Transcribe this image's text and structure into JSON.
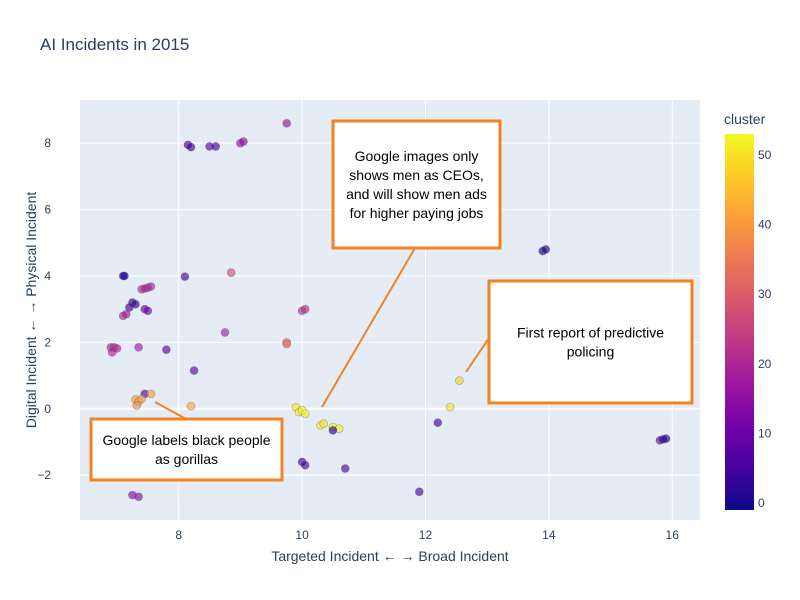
{
  "chart_data": {
    "type": "scatter",
    "title": "AI Incidents in 2015",
    "xlabel": "Targeted Incident ← → Broad Incident",
    "ylabel": "Digital Incident ← → Physical Incident",
    "xlim": [
      6.4,
      16.45
    ],
    "ylim": [
      -3.35,
      9.3
    ],
    "x_ticks": [
      8,
      10,
      12,
      14,
      16
    ],
    "y_ticks": [
      -2,
      0,
      2,
      4,
      6,
      8
    ],
    "y_tick_labels": [
      "−2",
      "0",
      "2",
      "4",
      "6",
      "8"
    ],
    "grid": true,
    "colorbar": {
      "title": "cluster",
      "range": [
        -1,
        53
      ],
      "ticks": [
        0,
        10,
        20,
        30,
        40,
        50
      ],
      "colors": [
        "#0d0887",
        "#46039f",
        "#7201a8",
        "#9c179e",
        "#bd3786",
        "#d8576b",
        "#ed7953",
        "#fb9f3a",
        "#fdca26",
        "#f0f921"
      ]
    },
    "points": [
      {
        "x": 8.15,
        "y": 7.95,
        "cluster": 5
      },
      {
        "x": 8.2,
        "y": 7.88,
        "cluster": 5
      },
      {
        "x": 8.5,
        "y": 7.9,
        "cluster": 8
      },
      {
        "x": 8.6,
        "y": 7.9,
        "cluster": 6
      },
      {
        "x": 9.0,
        "y": 8.0,
        "cluster": 15
      },
      {
        "x": 9.05,
        "y": 8.05,
        "cluster": 15
      },
      {
        "x": 9.75,
        "y": 8.6,
        "cluster": 16
      },
      {
        "x": 7.1,
        "y": 4.0,
        "cluster": 1
      },
      {
        "x": 7.12,
        "y": 4.0,
        "cluster": 1
      },
      {
        "x": 8.1,
        "y": 3.98,
        "cluster": 5
      },
      {
        "x": 8.85,
        "y": 4.1,
        "cluster": 28
      },
      {
        "x": 13.9,
        "y": 4.75,
        "cluster": 1
      },
      {
        "x": 13.95,
        "y": 4.8,
        "cluster": 1
      },
      {
        "x": 7.25,
        "y": 3.2,
        "cluster": 3
      },
      {
        "x": 7.3,
        "y": 3.15,
        "cluster": 3
      },
      {
        "x": 7.2,
        "y": 3.05,
        "cluster": 4
      },
      {
        "x": 7.4,
        "y": 3.6,
        "cluster": 20
      },
      {
        "x": 7.45,
        "y": 3.62,
        "cluster": 20
      },
      {
        "x": 7.5,
        "y": 3.65,
        "cluster": 20
      },
      {
        "x": 7.55,
        "y": 3.68,
        "cluster": 20
      },
      {
        "x": 7.45,
        "y": 3.0,
        "cluster": 10
      },
      {
        "x": 7.5,
        "y": 2.95,
        "cluster": 10
      },
      {
        "x": 7.1,
        "y": 2.8,
        "cluster": 20
      },
      {
        "x": 7.15,
        "y": 2.85,
        "cluster": 18
      },
      {
        "x": 10.0,
        "y": 2.95,
        "cluster": 22
      },
      {
        "x": 10.05,
        "y": 3.0,
        "cluster": 22
      },
      {
        "x": 8.75,
        "y": 2.3,
        "cluster": 19
      },
      {
        "x": 9.75,
        "y": 2.0,
        "cluster": 33
      },
      {
        "x": 9.75,
        "y": 1.95,
        "cluster": 33
      },
      {
        "x": 6.9,
        "y": 1.85,
        "cluster": 21
      },
      {
        "x": 6.95,
        "y": 1.85,
        "cluster": 21
      },
      {
        "x": 7.0,
        "y": 1.82,
        "cluster": 20
      },
      {
        "x": 6.92,
        "y": 1.7,
        "cluster": 20
      },
      {
        "x": 7.35,
        "y": 1.85,
        "cluster": 18
      },
      {
        "x": 7.8,
        "y": 1.78,
        "cluster": 9
      },
      {
        "x": 8.25,
        "y": 1.15,
        "cluster": 8
      },
      {
        "x": 7.45,
        "y": 0.45,
        "cluster": 6
      },
      {
        "x": 7.55,
        "y": 0.45,
        "cluster": 40
      },
      {
        "x": 7.3,
        "y": 0.28,
        "cluster": 40
      },
      {
        "x": 7.35,
        "y": 0.22,
        "cluster": 40
      },
      {
        "x": 7.4,
        "y": 0.3,
        "cluster": 40
      },
      {
        "x": 7.32,
        "y": 0.1,
        "cluster": 38
      },
      {
        "x": 8.2,
        "y": 0.08,
        "cluster": 42
      },
      {
        "x": 9.9,
        "y": 0.05,
        "cluster": 51
      },
      {
        "x": 9.95,
        "y": -0.1,
        "cluster": 51
      },
      {
        "x": 10.0,
        "y": -0.05,
        "cluster": 52
      },
      {
        "x": 10.05,
        "y": -0.15,
        "cluster": 52
      },
      {
        "x": 10.3,
        "y": -0.5,
        "cluster": 51
      },
      {
        "x": 10.35,
        "y": -0.45,
        "cluster": 51
      },
      {
        "x": 10.5,
        "y": -0.55,
        "cluster": 52
      },
      {
        "x": 10.6,
        "y": -0.6,
        "cluster": 52
      },
      {
        "x": 12.4,
        "y": 0.05,
        "cluster": 50
      },
      {
        "x": 12.55,
        "y": 0.85,
        "cluster": 48
      },
      {
        "x": 10.5,
        "y": -0.65,
        "cluster": 2
      },
      {
        "x": 12.2,
        "y": -0.42,
        "cluster": 5
      },
      {
        "x": 10.0,
        "y": -1.6,
        "cluster": 5
      },
      {
        "x": 10.05,
        "y": -1.7,
        "cluster": 5
      },
      {
        "x": 10.7,
        "y": -1.8,
        "cluster": 6
      },
      {
        "x": 11.9,
        "y": -2.5,
        "cluster": 7
      },
      {
        "x": 15.8,
        "y": -0.95,
        "cluster": 10
      },
      {
        "x": 15.85,
        "y": -0.92,
        "cluster": 3
      },
      {
        "x": 15.9,
        "y": -0.9,
        "cluster": 1
      },
      {
        "x": 7.25,
        "y": -2.6,
        "cluster": 14
      },
      {
        "x": 7.35,
        "y": -2.65,
        "cluster": 14
      }
    ],
    "annotations": [
      {
        "text_lines": [
          "Google images only",
          "shows men as CEOs,",
          "and will show men ads",
          "for higher paying jobs"
        ]
      },
      {
        "text_lines": [
          "First report of predictive",
          "policing"
        ]
      },
      {
        "text_lines": [
          "Google labels black people",
          "as gorillas"
        ]
      }
    ]
  }
}
